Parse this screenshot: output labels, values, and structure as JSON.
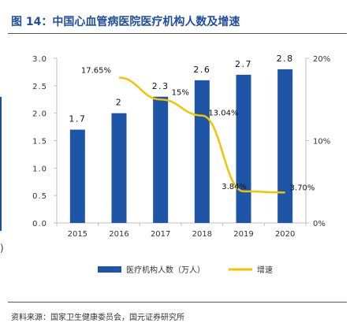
{
  "figure": {
    "title": "图 14：中国心血管病医院医疗机构人数及增速",
    "source": "资料来源：国家卫生健康委员会，国元证券研究所"
  },
  "colors": {
    "bar": "#1F55A6",
    "line": "#F2C300",
    "title": "#1F4E9E",
    "axis": "#BFBFBF"
  },
  "chart_data": {
    "type": "bar",
    "categories": [
      "2015",
      "2016",
      "2017",
      "2018",
      "2019",
      "2020"
    ],
    "series": [
      {
        "name": "医疗机构人数（万人）",
        "type": "bar",
        "axis": "left",
        "values": [
          1.7,
          2.0,
          2.3,
          2.6,
          2.7,
          2.8
        ],
        "labels": [
          "1.7",
          "2",
          "2.3",
          "2.6",
          "2.7",
          "2.8"
        ]
      },
      {
        "name": "增速",
        "type": "line",
        "axis": "right",
        "x": [
          "2016",
          "2017",
          "2018",
          "2019",
          "2020"
        ],
        "values": [
          17.65,
          15.0,
          13.04,
          3.84,
          3.7
        ],
        "labels": [
          "17.65%",
          "15%",
          "13.04%",
          "3.84%",
          "3.70%"
        ]
      }
    ],
    "y_left": {
      "lim": [
        0,
        3.0
      ],
      "ticks": [
        "0.0",
        "0.5",
        "1.0",
        "1.5",
        "2.0",
        "2.5",
        "3.0"
      ]
    },
    "y_right": {
      "lim": [
        0,
        20
      ],
      "ticks": [
        "0%",
        "10%",
        "20%"
      ]
    },
    "legend": {
      "position": "bottom"
    },
    "grid": false
  }
}
